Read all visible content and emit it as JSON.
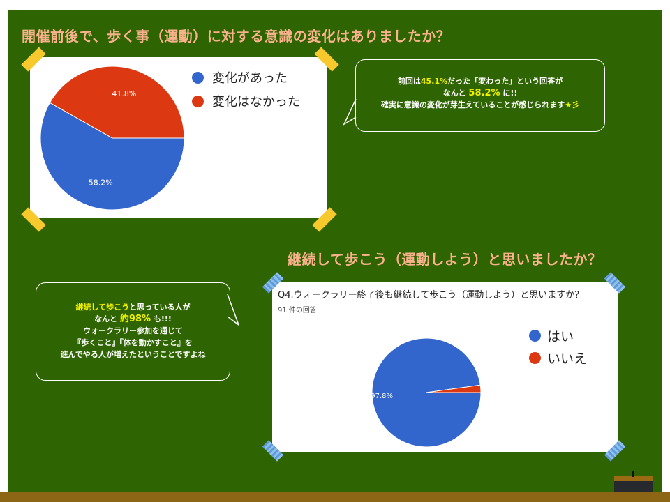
{
  "headings": {
    "q1": "開催前後で、歩く事（運動）に対する意識の変化はありましたか？",
    "q2": "継続して歩こう（運動しよう）と思いましたか？"
  },
  "bubble1": {
    "l1a": "前回は",
    "l1b": "45.1%",
    "l1c": "だった「変わった」という回答が",
    "l2a": "なんと ",
    "l2b": "58.2%",
    "l2c": " に!!",
    "l3a": "確実に意識の変化が芽生えていることが感じられます",
    "l3b": "★彡"
  },
  "bubble2": {
    "l1a": "継続して歩こう",
    "l1b": "と思っている人が",
    "l2a": "なんと ",
    "l2b": "約98%",
    "l2c": " も!!!",
    "l3": "ウォークラリー参加を通じて",
    "l4": "『歩くこと』『体を動かすこと』を",
    "l5": "進んでやる人が増えたということですよね"
  },
  "chart_survey2": {
    "question": "Q4.ウォークラリー終了後も継続して歩こう（運動しよう）と思いますか？",
    "responses": "91 件の回答"
  },
  "colors": {
    "board": "#2f6402",
    "heading": "#f9b28c",
    "highlight": "#f2f200",
    "blue": "#3366cc",
    "red": "#dc3912"
  },
  "chart_data": [
    {
      "type": "pie",
      "categories": [
        "変化があった",
        "変化はなかった"
      ],
      "values": [
        58.2,
        41.8
      ],
      "labels": [
        "58.2%",
        "41.8%"
      ],
      "colors": [
        "#3366cc",
        "#dc3912"
      ],
      "legend": "right"
    },
    {
      "type": "pie",
      "categories": [
        "はい",
        "いいえ"
      ],
      "values": [
        97.8,
        2.2
      ],
      "labels": [
        "97.8%",
        ""
      ],
      "colors": [
        "#3366cc",
        "#dc3912"
      ],
      "legend": "right"
    }
  ]
}
